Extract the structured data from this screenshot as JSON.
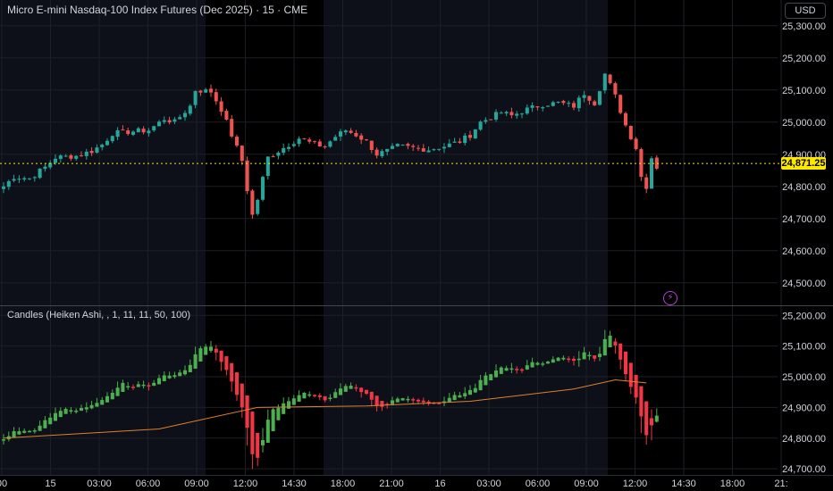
{
  "title": "Micro E-mini Nasdaq-100 Index Futures (Dec 2025) · 15 · CME",
  "currency": "USD",
  "last_price_label": "24,871.25",
  "indicator_label": "Candles (Heiken Ashi, , 1, 11, 11, 50, 100)",
  "colors": {
    "up": "#26a69a",
    "down": "#ef5350",
    "ha_up": "#4caf50",
    "ha_down": "#f23645",
    "ma": "#e0812a",
    "grid": "#1c1f26",
    "shade": "#0d1018",
    "price_line": "#ffe800",
    "badge": "#b043d1"
  },
  "icons": {
    "alert": "lightning-icon"
  },
  "chart_data": [
    {
      "type": "candlestick",
      "name": "price",
      "ylim": [
        24430,
        25380
      ],
      "y_ticks": [
        "25,300.00",
        "25,200.00",
        "25,100.00",
        "25,000.00",
        "24,900.00",
        "24,800.00",
        "24,700.00",
        "24,600.00",
        "24,500.00"
      ],
      "y_tick_values": [
        25300,
        25200,
        25100,
        25000,
        24900,
        24800,
        24700,
        24600,
        24500
      ],
      "last_price": 24871.25,
      "anchors": [
        [
          0,
          24800
        ],
        [
          2,
          24830
        ],
        [
          5,
          24825
        ],
        [
          8,
          24860
        ],
        [
          10,
          24890
        ],
        [
          14,
          24895
        ],
        [
          17,
          24910
        ],
        [
          19,
          24930
        ],
        [
          21,
          24965
        ],
        [
          24,
          24970
        ],
        [
          28,
          24975
        ],
        [
          31,
          25010
        ],
        [
          33,
          25000
        ],
        [
          36,
          25050
        ],
        [
          37,
          25100
        ],
        [
          40,
          25095
        ],
        [
          42,
          25040
        ],
        [
          44,
          24960
        ],
        [
          46,
          24880
        ],
        [
          47,
          24790
        ],
        [
          48,
          24710
        ],
        [
          49,
          24760
        ],
        [
          51,
          24890
        ],
        [
          54,
          24920
        ],
        [
          57,
          24950
        ],
        [
          60,
          24930
        ],
        [
          62,
          24925
        ],
        [
          64,
          24955
        ],
        [
          66,
          24975
        ],
        [
          68,
          24960
        ],
        [
          70,
          24940
        ],
        [
          72,
          24900
        ],
        [
          74,
          24910
        ],
        [
          76,
          24925
        ],
        [
          79,
          24920
        ],
        [
          82,
          24915
        ],
        [
          85,
          24925
        ],
        [
          88,
          24940
        ],
        [
          90,
          24960
        ],
        [
          92,
          25000
        ],
        [
          94,
          25015
        ],
        [
          96,
          25030
        ],
        [
          98,
          25020
        ],
        [
          101,
          25040
        ],
        [
          104,
          25055
        ],
        [
          107,
          25060
        ],
        [
          110,
          25050
        ],
        [
          112,
          25090
        ],
        [
          114,
          25060
        ],
        [
          116,
          25150
        ],
        [
          118,
          25080
        ],
        [
          120,
          24990
        ],
        [
          122,
          24920
        ],
        [
          123,
          24830
        ],
        [
          124,
          24800
        ],
        [
          125,
          24890
        ],
        [
          126,
          24860
        ]
      ]
    },
    {
      "type": "heiken_ashi",
      "name": "Heiken Ashi",
      "ylim": [
        24680,
        25230
      ],
      "y_ticks": [
        "25,200.00",
        "25,100.00",
        "25,000.00",
        "24,900.00",
        "24,800.00",
        "24,700.00"
      ],
      "y_tick_values": [
        25200,
        25100,
        25000,
        24900,
        24800,
        24700
      ],
      "ma_series": [
        [
          0,
          24800
        ],
        [
          30,
          24830
        ],
        [
          49,
          24900
        ],
        [
          70,
          24905
        ],
        [
          90,
          24920
        ],
        [
          110,
          24960
        ],
        [
          118,
          24990
        ],
        [
          124,
          24980
        ]
      ]
    }
  ],
  "x_axis": {
    "bars": 127,
    "ticks": [
      "00",
      "15",
      "03:00",
      "06:00",
      "09:00",
      "12:00",
      "14:30",
      "18:00",
      "21:00",
      "16",
      "03:00",
      "06:00",
      "09:00",
      "12:00",
      "14:30",
      "18:00",
      "21:"
    ],
    "tick_bar_index": [
      0,
      9,
      18,
      27,
      36,
      45,
      54,
      63,
      72,
      81,
      90,
      99,
      108,
      117,
      126,
      135,
      144
    ]
  }
}
